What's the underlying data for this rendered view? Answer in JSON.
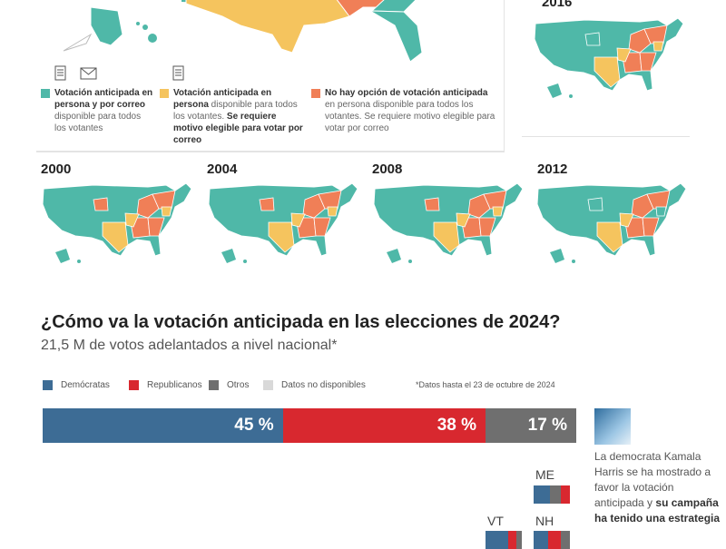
{
  "colors": {
    "teal": "#4fb8a8",
    "yellow": "#f5c45e",
    "orange": "#f07f57",
    "dem": "#3d6c95",
    "rep": "#d8282f",
    "other": "#6f6f6f",
    "na": "#d9d9d9"
  },
  "legend_maps": [
    {
      "bold": "Votación anticipada en persona y por correo",
      "rest": " disponible para todos los votantes",
      "icons": [
        "ballot-icon",
        "envelope-icon"
      ]
    },
    {
      "bold": "Votación anticipada en persona",
      "rest": " disponible para todos los votantes. ",
      "bold2": "Se requiere motivo elegible para votar por correo",
      "icons": [
        "ballot-icon"
      ]
    },
    {
      "bold": "No hay opción de votación anticipada",
      "rest": " en persona disponible para todos los votantes. Se requiere motivo elegible para votar por correo",
      "icons": []
    }
  ],
  "map_years": [
    "2016",
    "2000",
    "2004",
    "2008",
    "2012"
  ],
  "title": "¿Cómo va la votación anticipada en las elecciones de 2024?",
  "subtitle": "21,5 M de votos adelantados a nivel nacional*",
  "legend": [
    "Demócratas",
    "Republicanos",
    "Otros",
    "Datos no disponibles"
  ],
  "footnote": "*Datos hasta el 23 de octubre de 2024",
  "chart_data": {
    "type": "bar",
    "stacked": true,
    "title": "¿Cómo va la votación anticipada en las elecciones de 2024?",
    "subtitle": "21,5 M de votos adelantados a nivel nacional*",
    "series": [
      {
        "name": "Demócratas",
        "value": 45,
        "label": "45 %"
      },
      {
        "name": "Republicanos",
        "value": 38,
        "label": "38 %"
      },
      {
        "name": "Otros",
        "value": 17,
        "label": "17 %"
      }
    ],
    "states": [
      {
        "state": "ME",
        "values": {
          "Demócratas": 46,
          "Otros": 28,
          "Republicanos": 26
        },
        "order": [
          "Demócratas",
          "Otros",
          "Republicanos"
        ]
      },
      {
        "state": "VT",
        "values": {
          "Demócratas": 63,
          "Republicanos": 22,
          "Otros": 15
        },
        "order": [
          "Demócratas",
          "Republicanos",
          "Otros"
        ]
      },
      {
        "state": "NH",
        "values": {
          "Demócratas": 41,
          "Republicanos": 34,
          "Otros": 25
        },
        "order": [
          "Demócratas",
          "Republicanos",
          "Otros"
        ]
      }
    ]
  },
  "note": {
    "text": "La democrata Kamala Harris se ha mostrado a favor la votación anticipada y ",
    "bold": "su campaña ha tenido una estrategia"
  }
}
